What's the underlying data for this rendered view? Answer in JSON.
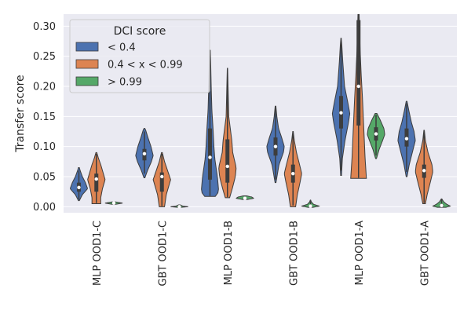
{
  "chart_data": {
    "type": "violin",
    "title": "",
    "xlabel": "",
    "ylabel": "Transfer score",
    "ylim": [
      -0.01,
      0.32
    ],
    "yticks": [
      0.0,
      0.05,
      0.1,
      0.15,
      0.2,
      0.25,
      0.3
    ],
    "ytick_labels": [
      "0.00",
      "0.05",
      "0.10",
      "0.15",
      "0.20",
      "0.25",
      "0.30"
    ],
    "grid": true,
    "legend": {
      "title": "DCI score",
      "position": "top-left",
      "entries": [
        {
          "label": "< 0.4",
          "color": "#4c72b0"
        },
        {
          "label": "0.4 < x < 0.99",
          "color": "#dd8452"
        },
        {
          "label": "> 0.99",
          "color": "#55a868"
        }
      ]
    },
    "categories": [
      "MLP  OOD1-C",
      "GBT  OOD1-C",
      "MLP  OOD1-B",
      "GBT  OOD1-B",
      "MLP  OOD1-A",
      "GBT  OOD1-A"
    ],
    "series": [
      {
        "name": "< 0.4",
        "color": "#4c72b0",
        "violins": [
          {
            "profile": [
              [
                0.01,
                0.05
              ],
              [
                0.02,
                0.4
              ],
              [
                0.03,
                1.0
              ],
              [
                0.04,
                0.75
              ],
              [
                0.05,
                0.4
              ],
              [
                0.06,
                0.15
              ],
              [
                0.065,
                0.05
              ]
            ],
            "q1": 0.025,
            "median": 0.032,
            "q3": 0.04,
            "wlo": 0.012,
            "whi": 0.06
          },
          {
            "profile": [
              [
                0.048,
                0.05
              ],
              [
                0.06,
                0.35
              ],
              [
                0.075,
                0.8
              ],
              [
                0.085,
                1.0
              ],
              [
                0.1,
                0.75
              ],
              [
                0.115,
                0.4
              ],
              [
                0.127,
                0.15
              ],
              [
                0.13,
                0.05
              ]
            ],
            "q1": 0.077,
            "median": 0.088,
            "q3": 0.096,
            "wlo": 0.055,
            "whi": 0.125
          },
          {
            "profile": [
              [
                0.017,
                0.6
              ],
              [
                0.025,
                1.0
              ],
              [
                0.05,
                0.85
              ],
              [
                0.08,
                0.55
              ],
              [
                0.1,
                0.45
              ],
              [
                0.13,
                0.35
              ],
              [
                0.16,
                0.22
              ],
              [
                0.2,
                0.14
              ],
              [
                0.24,
                0.08
              ],
              [
                0.26,
                0.03
              ]
            ],
            "q1": 0.045,
            "median": 0.082,
            "q3": 0.13,
            "wlo": 0.018,
            "whi": 0.26
          },
          {
            "profile": [
              [
                0.04,
                0.05
              ],
              [
                0.07,
                0.4
              ],
              [
                0.09,
                0.9
              ],
              [
                0.1,
                1.0
              ],
              [
                0.115,
                0.7
              ],
              [
                0.13,
                0.35
              ],
              [
                0.15,
                0.15
              ],
              [
                0.167,
                0.04
              ]
            ],
            "q1": 0.085,
            "median": 0.1,
            "q3": 0.115,
            "wlo": 0.045,
            "whi": 0.165
          },
          {
            "profile": [
              [
                0.052,
                0.05
              ],
              [
                0.08,
                0.15
              ],
              [
                0.11,
                0.45
              ],
              [
                0.14,
                0.85
              ],
              [
                0.155,
                1.0
              ],
              [
                0.175,
                0.75
              ],
              [
                0.2,
                0.4
              ],
              [
                0.24,
                0.2
              ],
              [
                0.27,
                0.08
              ],
              [
                0.28,
                0.02
              ]
            ],
            "q1": 0.13,
            "median": 0.156,
            "q3": 0.184,
            "wlo": 0.06,
            "whi": 0.275
          },
          {
            "profile": [
              [
                0.05,
                0.05
              ],
              [
                0.07,
                0.3
              ],
              [
                0.09,
                0.65
              ],
              [
                0.11,
                1.0
              ],
              [
                0.125,
                0.85
              ],
              [
                0.14,
                0.55
              ],
              [
                0.16,
                0.25
              ],
              [
                0.175,
                0.05
              ]
            ],
            "q1": 0.1,
            "median": 0.113,
            "q3": 0.13,
            "wlo": 0.058,
            "whi": 0.172
          }
        ]
      },
      {
        "name": "0.4 < x < 0.99",
        "color": "#dd8452",
        "violins": [
          {
            "profile": [
              [
                0.005,
                0.5
              ],
              [
                0.015,
                0.5
              ],
              [
                0.03,
                0.7
              ],
              [
                0.045,
                1.0
              ],
              [
                0.055,
                0.8
              ],
              [
                0.07,
                0.5
              ],
              [
                0.08,
                0.25
              ],
              [
                0.09,
                0.05
              ]
            ],
            "q1": 0.025,
            "median": 0.046,
            "q3": 0.055,
            "wlo": 0.006,
            "whi": 0.088
          },
          {
            "profile": [
              [
                0.0,
                0.3
              ],
              [
                0.02,
                0.5
              ],
              [
                0.035,
                0.8
              ],
              [
                0.045,
                1.0
              ],
              [
                0.06,
                0.65
              ],
              [
                0.075,
                0.3
              ],
              [
                0.09,
                0.05
              ]
            ],
            "q1": 0.025,
            "median": 0.05,
            "q3": 0.057,
            "wlo": 0.001,
            "whi": 0.088
          },
          {
            "profile": [
              [
                0.015,
                0.25
              ],
              [
                0.03,
                0.55
              ],
              [
                0.05,
                0.9
              ],
              [
                0.065,
                1.0
              ],
              [
                0.09,
                0.6
              ],
              [
                0.11,
                0.5
              ],
              [
                0.15,
                0.15
              ],
              [
                0.2,
                0.07
              ],
              [
                0.23,
                0.02
              ]
            ],
            "q1": 0.04,
            "median": 0.067,
            "q3": 0.112,
            "wlo": 0.016,
            "whi": 0.228
          },
          {
            "profile": [
              [
                0.0,
                0.3
              ],
              [
                0.02,
                0.5
              ],
              [
                0.04,
                0.8
              ],
              [
                0.055,
                1.0
              ],
              [
                0.07,
                0.75
              ],
              [
                0.09,
                0.4
              ],
              [
                0.11,
                0.15
              ],
              [
                0.125,
                0.03
              ]
            ],
            "q1": 0.04,
            "median": 0.055,
            "q3": 0.07,
            "wlo": 0.002,
            "whi": 0.124
          },
          {
            "profile": [
              [
                0.047,
                0.9
              ],
              [
                0.08,
                0.75
              ],
              [
                0.13,
                0.6
              ],
              [
                0.18,
                0.45
              ],
              [
                0.22,
                0.3
              ],
              [
                0.26,
                0.18
              ],
              [
                0.3,
                0.1
              ],
              [
                0.33,
                0.05
              ]
            ],
            "q1": 0.135,
            "median": 0.2,
            "q3": 0.31,
            "wlo": 0.048,
            "whi": 0.33
          },
          {
            "profile": [
              [
                0.005,
                0.15
              ],
              [
                0.02,
                0.35
              ],
              [
                0.04,
                0.7
              ],
              [
                0.058,
                1.0
              ],
              [
                0.07,
                0.9
              ],
              [
                0.09,
                0.45
              ],
              [
                0.11,
                0.15
              ],
              [
                0.127,
                0.03
              ]
            ],
            "q1": 0.048,
            "median": 0.06,
            "q3": 0.07,
            "wlo": 0.006,
            "whi": 0.125
          }
        ]
      },
      {
        "name": "> 0.99",
        "color": "#55a868",
        "violins": [
          {
            "profile": [
              [
                0.004,
                0.2
              ],
              [
                0.006,
                1.0
              ],
              [
                0.008,
                0.2
              ]
            ],
            "q1": 0.0055,
            "median": 0.006,
            "q3": 0.0065,
            "wlo": 0.004,
            "whi": 0.008
          },
          {
            "profile": [
              [
                -0.001,
                0.2
              ],
              [
                0.0,
                1.0
              ],
              [
                0.001,
                0.4
              ],
              [
                0.003,
                0.1
              ]
            ],
            "q1": -0.0005,
            "median": 0.0,
            "q3": 0.0005,
            "wlo": -0.001,
            "whi": 0.003
          },
          {
            "profile": [
              [
                0.012,
                0.3
              ],
              [
                0.014,
                1.0
              ],
              [
                0.016,
                0.8
              ],
              [
                0.018,
                0.2
              ]
            ],
            "q1": 0.013,
            "median": 0.014,
            "q3": 0.015,
            "wlo": 0.012,
            "whi": 0.018
          },
          {
            "profile": [
              [
                -0.001,
                0.3
              ],
              [
                0.001,
                1.0
              ],
              [
                0.004,
                0.35
              ],
              [
                0.008,
                0.1
              ],
              [
                0.011,
                0.02
              ]
            ],
            "q1": 0.0,
            "median": 0.001,
            "q3": 0.002,
            "wlo": -0.001,
            "whi": 0.011
          },
          {
            "profile": [
              [
                0.08,
                0.05
              ],
              [
                0.095,
                0.35
              ],
              [
                0.11,
                0.75
              ],
              [
                0.12,
                1.0
              ],
              [
                0.13,
                0.9
              ],
              [
                0.145,
                0.45
              ],
              [
                0.155,
                0.1
              ]
            ],
            "q1": 0.11,
            "median": 0.121,
            "q3": 0.132,
            "wlo": 0.085,
            "whi": 0.153
          },
          {
            "profile": [
              [
                -0.001,
                0.5
              ],
              [
                0.001,
                1.0
              ],
              [
                0.004,
                0.6
              ],
              [
                0.008,
                0.25
              ],
              [
                0.013,
                0.03
              ]
            ],
            "q1": 0.0,
            "median": 0.002,
            "q3": 0.004,
            "wlo": -0.001,
            "whi": 0.013
          }
        ]
      }
    ]
  }
}
